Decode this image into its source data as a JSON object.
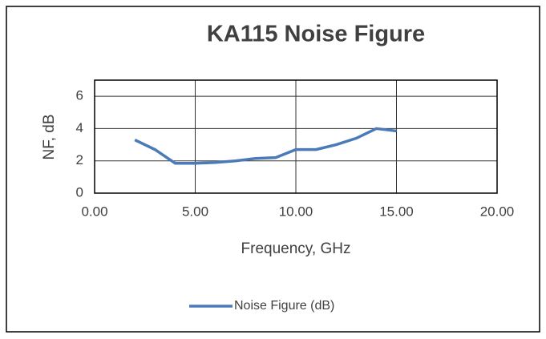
{
  "chart_data": {
    "type": "line",
    "title": "KA115 Noise Figure",
    "x_label": "Frequency, GHz",
    "y_label": "NF, dB",
    "x": [
      2,
      3,
      4,
      5,
      6,
      7,
      8,
      9,
      10,
      11,
      12,
      13,
      14,
      15
    ],
    "series": [
      {
        "name": "Noise Figure (dB)",
        "color": "#4a7ab8",
        "values": [
          3.3,
          2.7,
          1.85,
          1.85,
          1.9,
          2.0,
          2.15,
          2.2,
          2.7,
          2.7,
          3.0,
          3.4,
          4.0,
          3.85
        ]
      }
    ],
    "xlim": [
      0,
      20
    ],
    "xticks": [
      {
        "value": 0,
        "label": "0.00"
      },
      {
        "value": 5,
        "label": "5.00"
      },
      {
        "value": 10,
        "label": "10.00"
      },
      {
        "value": 15,
        "label": "15.00"
      },
      {
        "value": 20,
        "label": "20.00"
      }
    ],
    "ylim": [
      0,
      7
    ],
    "yticks": [
      0,
      2,
      4,
      6
    ],
    "grid": true,
    "legend": "bottom"
  }
}
